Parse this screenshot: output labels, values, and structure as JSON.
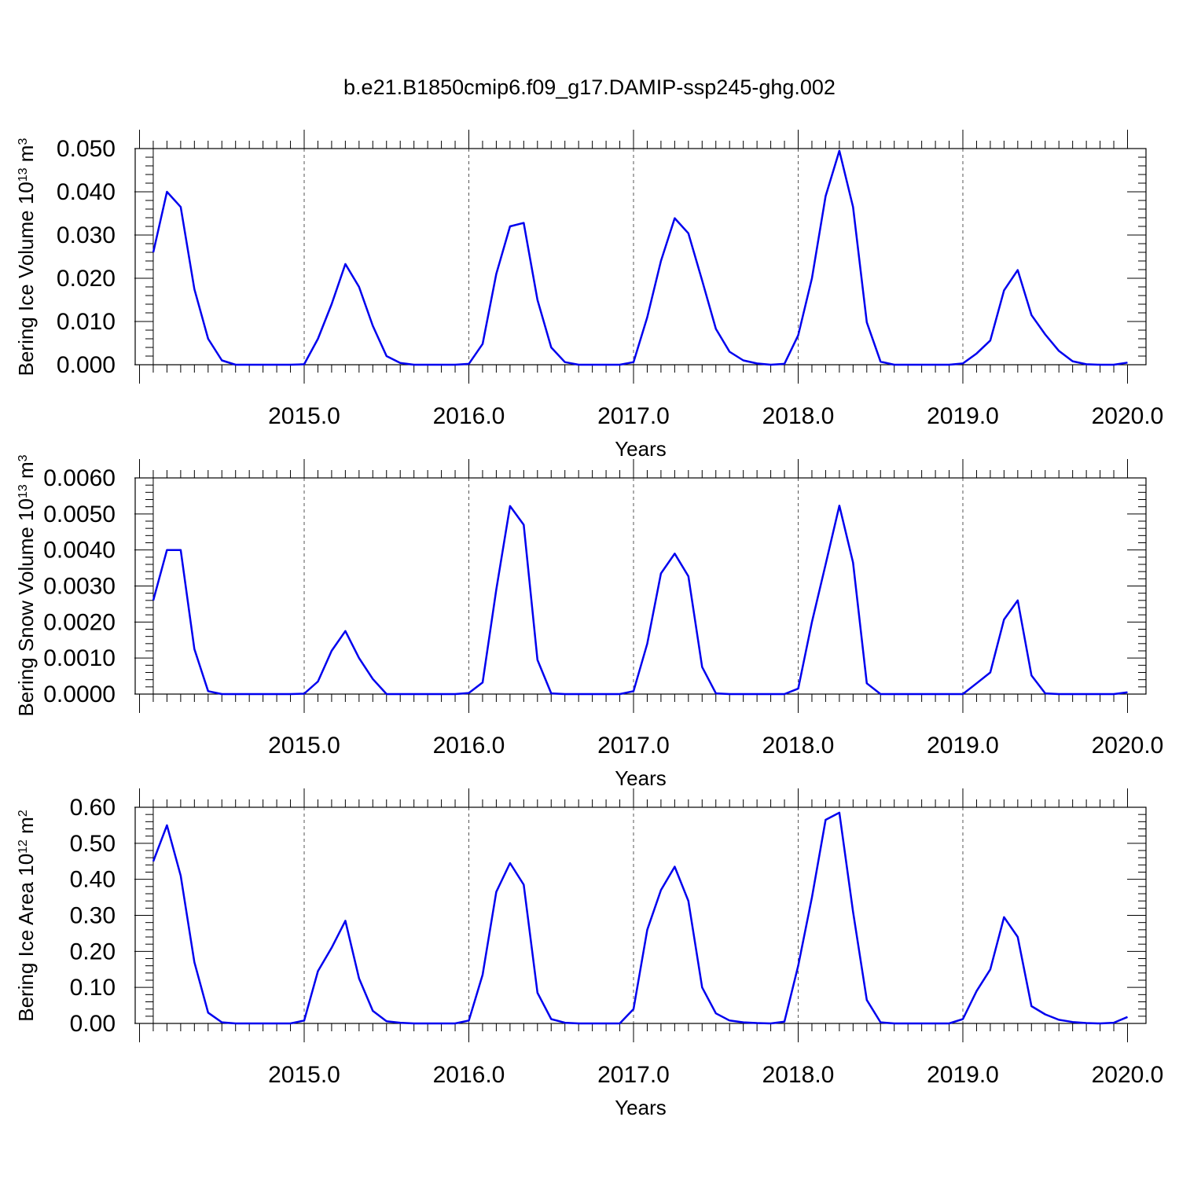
{
  "title": "b.e21.B1850cmip6.f09_g17.DAMIP-ssp245-ghg.002",
  "line_color": "#0000ee",
  "chart_data": [
    {
      "type": "line",
      "xlabel": "Years",
      "ylabel": "Bering Ice Volume 10",
      "ylabel_exp": "13",
      "ylabel_unit": " m",
      "ylabel_unit_exp": "3",
      "xlim": [
        2014.0833,
        2020.125
      ],
      "ylim": [
        0,
        0.05
      ],
      "xticks": [
        "2015.0",
        "2016.0",
        "2017.0",
        "2018.0",
        "2019.0",
        "2020.0"
      ],
      "yticks": [
        "0.000",
        "0.010",
        "0.020",
        "0.030",
        "0.040",
        "0.050"
      ],
      "ytick_values": [
        0,
        0.01,
        0.02,
        0.03,
        0.04,
        0.05
      ],
      "grid": "dashed vertical at years",
      "x": [
        2014.0833,
        2014.1667,
        2014.25,
        2014.3333,
        2014.4167,
        2014.5,
        2014.5833,
        2014.6667,
        2014.75,
        2014.8333,
        2014.9167,
        2015.0,
        2015.0833,
        2015.1667,
        2015.25,
        2015.3333,
        2015.4167,
        2015.5,
        2015.5833,
        2015.6667,
        2015.75,
        2015.8333,
        2015.9167,
        2016.0,
        2016.0833,
        2016.1667,
        2016.25,
        2016.3333,
        2016.4167,
        2016.5,
        2016.5833,
        2016.6667,
        2016.75,
        2016.8333,
        2016.9167,
        2017.0,
        2017.0833,
        2017.1667,
        2017.25,
        2017.3333,
        2017.4167,
        2017.5,
        2017.5833,
        2017.6667,
        2017.75,
        2017.8333,
        2017.9167,
        2018.0,
        2018.0833,
        2018.1667,
        2018.25,
        2018.3333,
        2018.4167,
        2018.5,
        2018.5833,
        2018.6667,
        2018.75,
        2018.8333,
        2018.9167,
        2019.0,
        2019.0833,
        2019.1667,
        2019.25,
        2019.3333,
        2019.4167,
        2019.5,
        2019.5833,
        2019.6667,
        2019.75,
        2019.8333,
        2019.9167,
        2020.0
      ],
      "series": [
        {
          "values": [
            0.026,
            0.04,
            0.0365,
            0.0175,
            0.006,
            0.001,
            0.0,
            0.0,
            0.0,
            0.0,
            0.0,
            0.0001,
            0.006,
            0.014,
            0.0233,
            0.018,
            0.009,
            0.002,
            0.0004,
            0.0,
            0.0,
            0.0,
            0.0,
            0.0002,
            0.0048,
            0.021,
            0.032,
            0.0328,
            0.015,
            0.004,
            0.0006,
            0.0,
            0.0,
            0.0,
            0.0,
            0.0006,
            0.011,
            0.024,
            0.0339,
            0.0304,
            0.0195,
            0.0083,
            0.003,
            0.001,
            0.0003,
            0.0,
            0.0002,
            0.0068,
            0.02,
            0.039,
            0.0495,
            0.0365,
            0.0098,
            0.0007,
            0.0,
            0.0,
            0.0,
            0.0,
            0.0,
            0.0003,
            0.0026,
            0.0056,
            0.0172,
            0.0219,
            0.0115,
            0.007,
            0.0032,
            0.0008,
            0.0001,
            0.0,
            0.0,
            0.0005
          ]
        }
      ]
    },
    {
      "type": "line",
      "xlabel": "Years",
      "ylabel": "Bering Snow Volume 10",
      "ylabel_exp": "13",
      "ylabel_unit": " m",
      "ylabel_unit_exp": "3",
      "xlim": [
        2014.0833,
        2020.125
      ],
      "ylim": [
        0,
        0.006
      ],
      "xticks": [
        "2015.0",
        "2016.0",
        "2017.0",
        "2018.0",
        "2019.0",
        "2020.0"
      ],
      "yticks": [
        "0.0000",
        "0.0010",
        "0.0020",
        "0.0030",
        "0.0040",
        "0.0050",
        "0.0060"
      ],
      "ytick_values": [
        0,
        0.001,
        0.002,
        0.003,
        0.004,
        0.005,
        0.006
      ],
      "grid": "dashed vertical at years",
      "x": [
        2014.0833,
        2014.1667,
        2014.25,
        2014.3333,
        2014.4167,
        2014.5,
        2014.5833,
        2014.6667,
        2014.75,
        2014.8333,
        2014.9167,
        2015.0,
        2015.0833,
        2015.1667,
        2015.25,
        2015.3333,
        2015.4167,
        2015.5,
        2015.5833,
        2015.6667,
        2015.75,
        2015.8333,
        2015.9167,
        2016.0,
        2016.0833,
        2016.1667,
        2016.25,
        2016.3333,
        2016.4167,
        2016.5,
        2016.5833,
        2016.6667,
        2016.75,
        2016.8333,
        2016.9167,
        2017.0,
        2017.0833,
        2017.1667,
        2017.25,
        2017.3333,
        2017.4167,
        2017.5,
        2017.5833,
        2017.6667,
        2017.75,
        2017.8333,
        2017.9167,
        2018.0,
        2018.0833,
        2018.1667,
        2018.25,
        2018.3333,
        2018.4167,
        2018.5,
        2018.5833,
        2018.6667,
        2018.75,
        2018.8333,
        2018.9167,
        2019.0,
        2019.0833,
        2019.1667,
        2019.25,
        2019.3333,
        2019.4167,
        2019.5,
        2019.5833,
        2019.6667,
        2019.75,
        2019.8333,
        2019.9167,
        2020.0
      ],
      "series": [
        {
          "values": [
            0.0026,
            0.004,
            0.004,
            0.00125,
            8e-05,
            0.0,
            0.0,
            0.0,
            0.0,
            0.0,
            0.0,
            1e-05,
            0.00035,
            0.0012,
            0.00175,
            0.001,
            0.00042,
            0.0,
            0.0,
            0.0,
            0.0,
            0.0,
            0.0,
            3e-05,
            0.00032,
            0.0029,
            0.00522,
            0.0047,
            0.00095,
            2e-05,
            0.0,
            0.0,
            0.0,
            0.0,
            0.0,
            8e-05,
            0.0014,
            0.00335,
            0.0039,
            0.00327,
            0.00075,
            2e-05,
            0.0,
            0.0,
            0.0,
            0.0,
            0.0,
            0.00015,
            0.002,
            0.0036,
            0.00523,
            0.00365,
            0.0003,
            0.0,
            0.0,
            0.0,
            0.0,
            0.0,
            0.0,
            0.0,
            0.0003,
            0.0006,
            0.00207,
            0.0026,
            0.00052,
            2e-05,
            0.0,
            0.0,
            0.0,
            0.0,
            0.0,
            5e-05
          ]
        }
      ]
    },
    {
      "type": "line",
      "xlabel": "Years",
      "ylabel": "Bering Ice Area 10",
      "ylabel_exp": "12",
      "ylabel_unit": " m",
      "ylabel_unit_exp": "2",
      "xlim": [
        2014.0833,
        2020.125
      ],
      "ylim": [
        0,
        0.6
      ],
      "xticks": [
        "2015.0",
        "2016.0",
        "2017.0",
        "2018.0",
        "2019.0",
        "2020.0"
      ],
      "yticks": [
        "0.00",
        "0.10",
        "0.20",
        "0.30",
        "0.40",
        "0.50",
        "0.60"
      ],
      "ytick_values": [
        0,
        0.1,
        0.2,
        0.3,
        0.4,
        0.5,
        0.6
      ],
      "grid": "dashed vertical at years",
      "x": [
        2014.0833,
        2014.1667,
        2014.25,
        2014.3333,
        2014.4167,
        2014.5,
        2014.5833,
        2014.6667,
        2014.75,
        2014.8333,
        2014.9167,
        2015.0,
        2015.0833,
        2015.1667,
        2015.25,
        2015.3333,
        2015.4167,
        2015.5,
        2015.5833,
        2015.6667,
        2015.75,
        2015.8333,
        2015.9167,
        2016.0,
        2016.0833,
        2016.1667,
        2016.25,
        2016.3333,
        2016.4167,
        2016.5,
        2016.5833,
        2016.6667,
        2016.75,
        2016.8333,
        2016.9167,
        2017.0,
        2017.0833,
        2017.1667,
        2017.25,
        2017.3333,
        2017.4167,
        2017.5,
        2017.5833,
        2017.6667,
        2017.75,
        2017.8333,
        2017.9167,
        2018.0,
        2018.0833,
        2018.1667,
        2018.25,
        2018.3333,
        2018.4167,
        2018.5,
        2018.5833,
        2018.6667,
        2018.75,
        2018.8333,
        2018.9167,
        2019.0,
        2019.0833,
        2019.1667,
        2019.25,
        2019.3333,
        2019.4167,
        2019.5,
        2019.5833,
        2019.6667,
        2019.75,
        2019.8333,
        2019.9167,
        2020.0
      ],
      "series": [
        {
          "values": [
            0.45,
            0.55,
            0.41,
            0.17,
            0.03,
            0.003,
            0.0,
            0.0,
            0.0,
            0.0,
            0.0,
            0.008,
            0.145,
            0.21,
            0.285,
            0.125,
            0.035,
            0.006,
            0.002,
            0.0,
            0.0,
            0.0,
            0.0,
            0.008,
            0.135,
            0.365,
            0.445,
            0.385,
            0.085,
            0.012,
            0.002,
            0.0,
            0.0,
            0.0,
            0.0,
            0.04,
            0.26,
            0.37,
            0.435,
            0.34,
            0.1,
            0.028,
            0.008,
            0.003,
            0.001,
            0.0,
            0.005,
            0.16,
            0.35,
            0.565,
            0.585,
            0.31,
            0.065,
            0.003,
            0.0,
            0.0,
            0.0,
            0.0,
            0.0,
            0.012,
            0.09,
            0.15,
            0.295,
            0.24,
            0.048,
            0.025,
            0.01,
            0.004,
            0.001,
            0.0,
            0.002,
            0.018
          ]
        }
      ]
    }
  ]
}
